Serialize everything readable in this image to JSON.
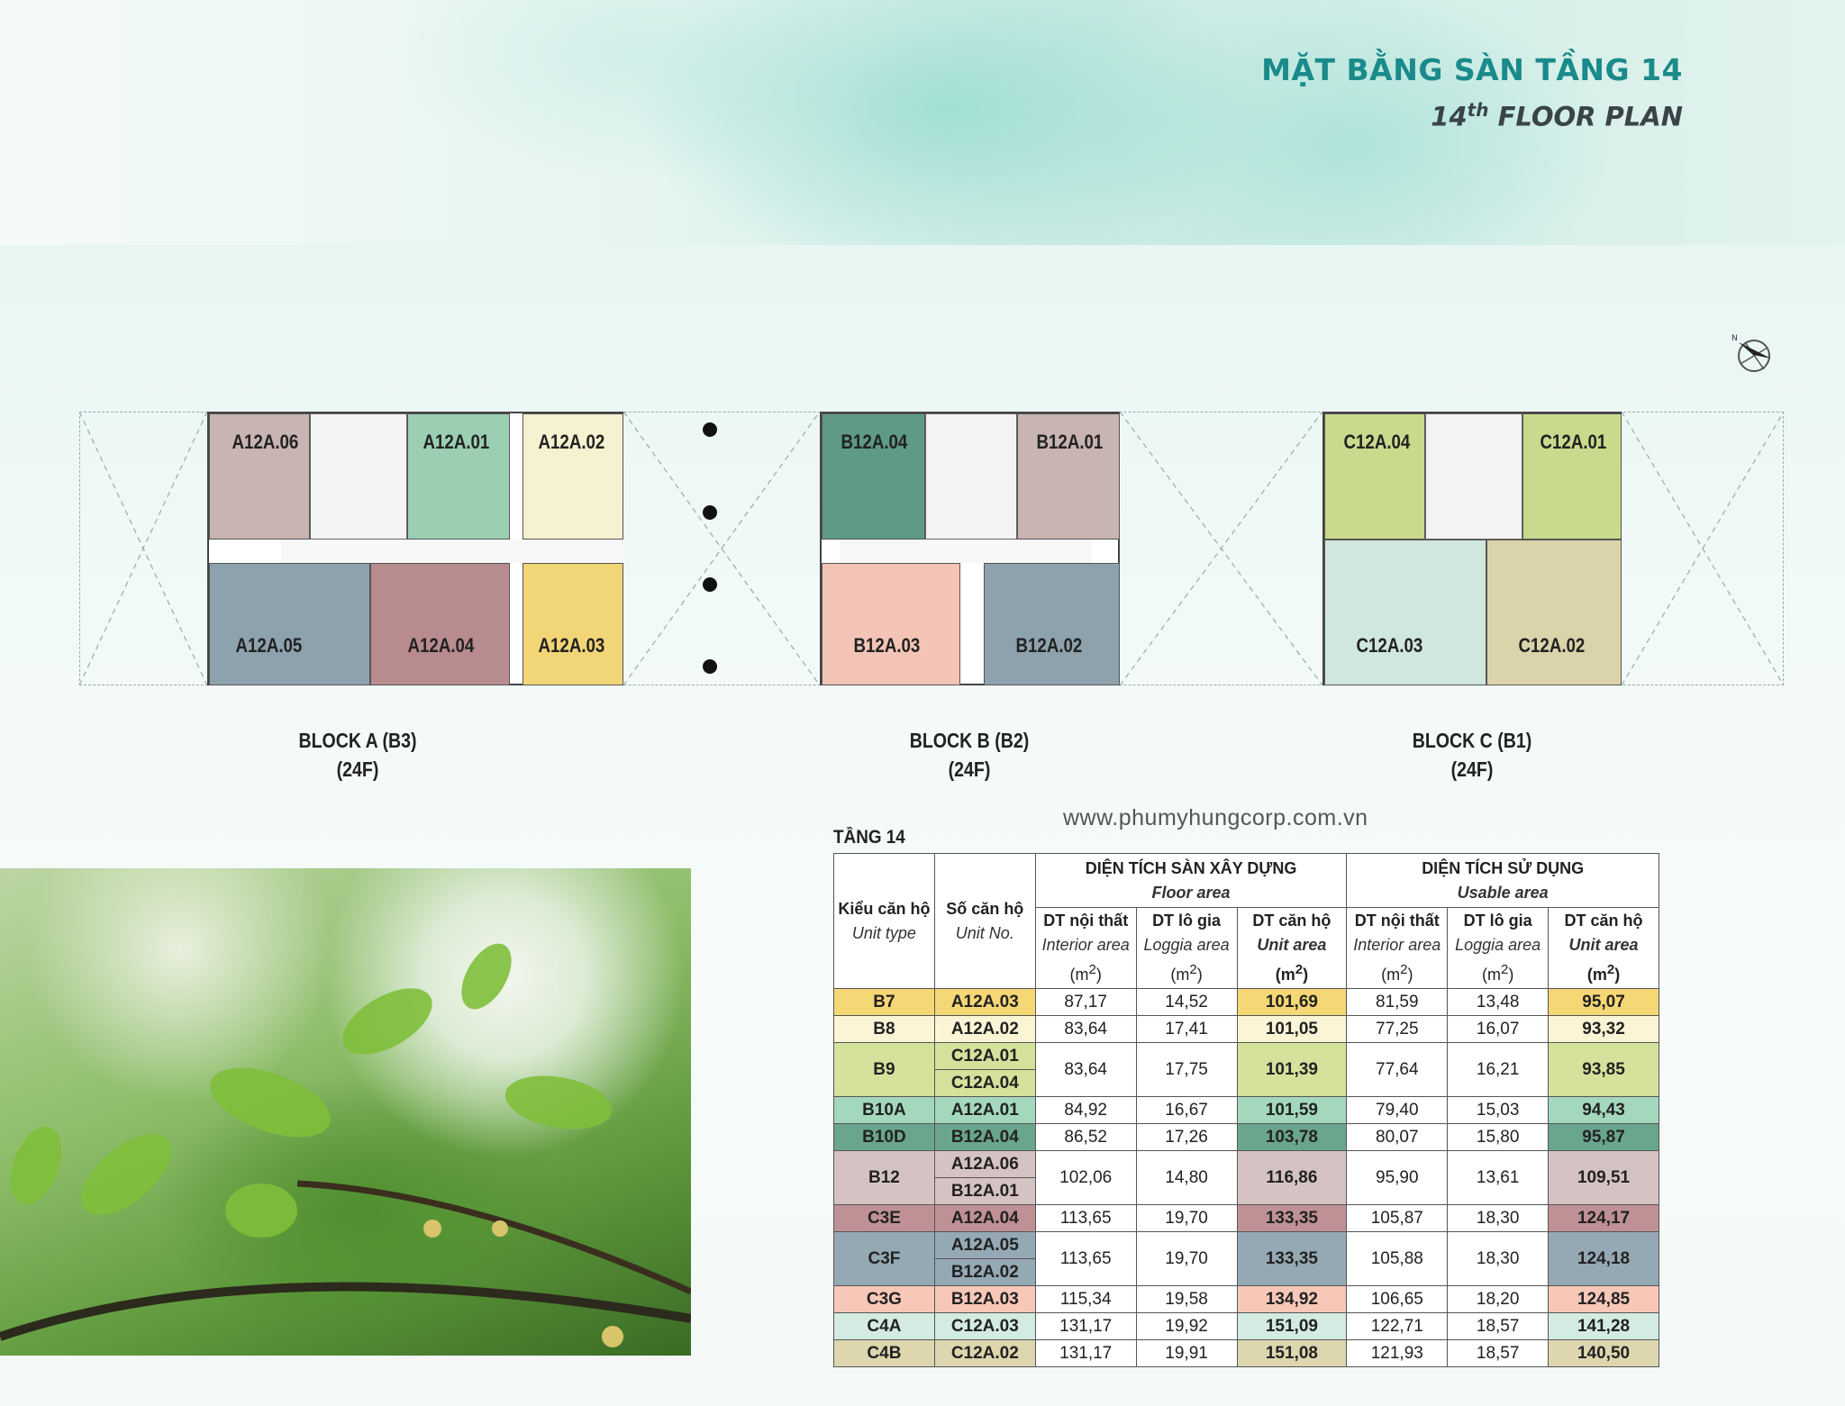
{
  "header": {
    "title": "MẶT BẰNG SÀN TẦNG 14",
    "subtitle_num": "14",
    "subtitle_sup": "th",
    "subtitle_rest": "FLOOR PLAN"
  },
  "compass": {
    "label": "N"
  },
  "blocks": [
    {
      "name": "BLOCK A (B3)",
      "floors": "(24F)",
      "units": [
        {
          "id": "A12A.06",
          "color": "#c8b4b2"
        },
        {
          "id": "A12A.01",
          "color": "#9ccfb2"
        },
        {
          "id": "A12A.02",
          "color": "#f6f1d0"
        },
        {
          "id": "A12A.05",
          "color": "#8ea2ae"
        },
        {
          "id": "A12A.04",
          "color": "#b88b8e"
        },
        {
          "id": "A12A.03",
          "color": "#f2d576"
        }
      ]
    },
    {
      "name": "BLOCK B (B2)",
      "floors": "(24F)",
      "units": [
        {
          "id": "B12A.04",
          "color": "#5e9a84"
        },
        {
          "id": "B12A.01",
          "color": "#c8b4b2"
        },
        {
          "id": "B12A.03",
          "color": "#f3c4b6"
        },
        {
          "id": "B12A.02",
          "color": "#8ea2ae"
        }
      ]
    },
    {
      "name": "BLOCK C (B1)",
      "floors": "(24F)",
      "units": [
        {
          "id": "C12A.04",
          "color": "#c9da8c"
        },
        {
          "id": "C12A.01",
          "color": "#c9da8c"
        },
        {
          "id": "C12A.03",
          "color": "#cfe7dc"
        },
        {
          "id": "C12A.02",
          "color": "#dbd3a9"
        }
      ]
    }
  ],
  "website": "www.phumyhungcorp.com.vn",
  "table": {
    "label": "TẦNG 14",
    "col_type": {
      "vi": "Kiểu căn hộ",
      "en": "Unit type"
    },
    "col_unit": {
      "vi": "Số căn hộ",
      "en": "Unit No."
    },
    "group_floor": {
      "vi": "DIỆN TÍCH SÀN XÂY DỰNG",
      "en": "Floor area"
    },
    "group_usable": {
      "vi": "DIỆN TÍCH SỬ DỤNG",
      "en": "Usable area"
    },
    "sub_interior": {
      "vi": "DT nội thất",
      "en": "Interior area"
    },
    "sub_loggia": {
      "vi": "DT lô gia",
      "en": "Loggia area"
    },
    "sub_unit": {
      "vi": "DT căn hộ",
      "en": "Unit area"
    },
    "unit_m": "(m",
    "unit_sup": "2",
    "unit_close": ")",
    "rows": [
      {
        "type": "B7",
        "units": [
          "A12A.03"
        ],
        "color": "#f6d775",
        "f": [
          "87,17",
          "14,52",
          "101,69"
        ],
        "u": [
          "81,59",
          "13,48",
          "95,07"
        ]
      },
      {
        "type": "B8",
        "units": [
          "A12A.02"
        ],
        "color": "#fbf5d6",
        "f": [
          "83,64",
          "17,41",
          "101,05"
        ],
        "u": [
          "77,25",
          "16,07",
          "93,32"
        ]
      },
      {
        "type": "B9",
        "units": [
          "C12A.01",
          "C12A.04"
        ],
        "color": "#d4e29c",
        "f": [
          "83,64",
          "17,75",
          "101,39"
        ],
        "u": [
          "77,64",
          "16,21",
          "93,85"
        ]
      },
      {
        "type": "B10A",
        "units": [
          "A12A.01"
        ],
        "color": "#a4d8bd",
        "f": [
          "84,92",
          "16,67",
          "101,59"
        ],
        "u": [
          "79,40",
          "15,03",
          "94,43"
        ]
      },
      {
        "type": "B10D",
        "units": [
          "B12A.04"
        ],
        "color": "#6aa58d",
        "f": [
          "86,52",
          "17,26",
          "103,78"
        ],
        "u": [
          "80,07",
          "15,80",
          "95,87"
        ]
      },
      {
        "type": "B12",
        "units": [
          "A12A.06",
          "B12A.01"
        ],
        "color": "#d5c3c3",
        "f": [
          "102,06",
          "14,80",
          "116,86"
        ],
        "u": [
          "95,90",
          "13,61",
          "109,51"
        ]
      },
      {
        "type": "C3E",
        "units": [
          "A12A.04"
        ],
        "color": "#bf9194",
        "f": [
          "113,65",
          "19,70",
          "133,35"
        ],
        "u": [
          "105,87",
          "18,30",
          "124,17"
        ]
      },
      {
        "type": "C3F",
        "units": [
          "A12A.05",
          "B12A.02"
        ],
        "color": "#95a9b4",
        "f": [
          "113,65",
          "19,70",
          "133,35"
        ],
        "u": [
          "105,88",
          "18,30",
          "124,18"
        ]
      },
      {
        "type": "C3G",
        "units": [
          "B12A.03"
        ],
        "color": "#f7c7b8",
        "f": [
          "115,34",
          "19,58",
          "134,92"
        ],
        "u": [
          "106,65",
          "18,20",
          "124,85"
        ]
      },
      {
        "type": "C4A",
        "units": [
          "C12A.03"
        ],
        "color": "#d3ebe1",
        "f": [
          "131,17",
          "19,92",
          "151,09"
        ],
        "u": [
          "122,71",
          "18,57",
          "141,28"
        ]
      },
      {
        "type": "C4B",
        "units": [
          "C12A.02"
        ],
        "color": "#ddd6ae",
        "f": [
          "131,17",
          "19,91",
          "151,08"
        ],
        "u": [
          "121,93",
          "18,57",
          "140,50"
        ]
      }
    ]
  }
}
